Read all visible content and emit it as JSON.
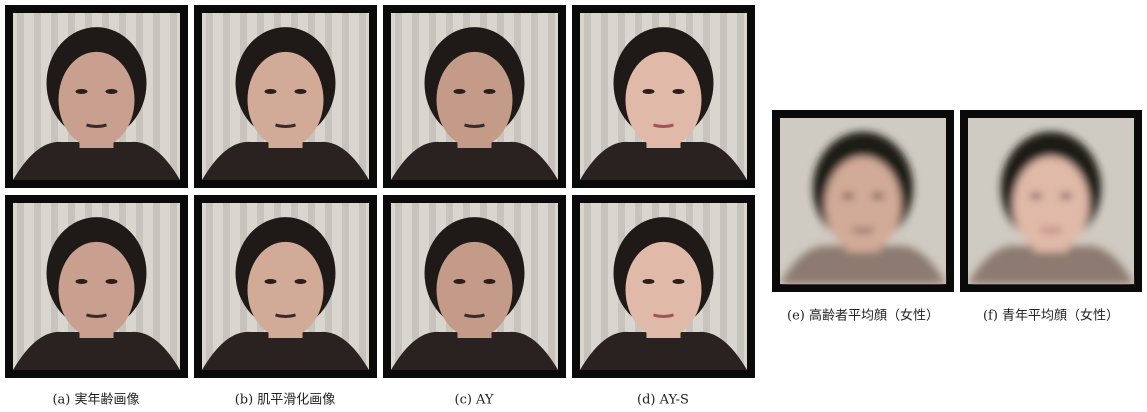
{
  "figure": {
    "subfigures": [
      {
        "caption": "(a) 実年齢画像"
      },
      {
        "caption": "(b) 肌平滑化画像"
      },
      {
        "caption": "(c) AY"
      },
      {
        "caption": "(d) AY-S"
      },
      {
        "caption": "(e) 高齢者平均顔（女性）"
      },
      {
        "caption": "(f) 青年平均顔（女性）"
      }
    ]
  }
}
